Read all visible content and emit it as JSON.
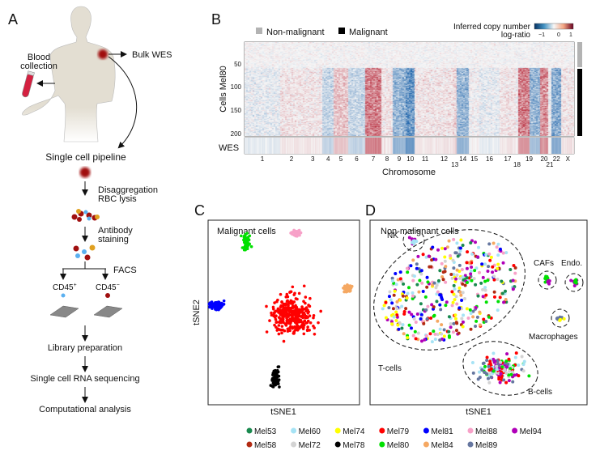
{
  "panel_a": {
    "label": "A",
    "bulk_wes": "Bulk WES",
    "blood_line1": "Blood",
    "blood_line2": "collection",
    "pipeline_title": "Single cell pipeline",
    "step1_line1": "Disaggregation",
    "step1_line2": "RBC lysis",
    "step2_line1": "Antibody",
    "step2_line2": "staining",
    "facs": "FACS",
    "cd45_pos": "CD45",
    "cd45_pos_sup": "+",
    "cd45_neg": "CD45",
    "cd45_neg_sup": "−",
    "step3": "Library preparation",
    "step4": "Single cell RNA sequencing",
    "step5": "Computational analysis"
  },
  "panel_b": {
    "label": "B",
    "legend_nonmalignant": "Non-malignant",
    "legend_malignant": "Malignant",
    "colorbar_title_line1": "Inferred copy number",
    "colorbar_title_line2": "log-ratio",
    "colorbar_ticks": [
      "−1",
      "0",
      "1"
    ],
    "ylabel": "Cells Mel80",
    "yticks": [
      "50",
      "100",
      "150",
      "200"
    ],
    "wes_label": "WES",
    "xlabel": "Chromosome",
    "colors": {
      "gain": "#b2182b",
      "loss": "#2166ac",
      "neutral": "#f7f7f7",
      "nonmalignant": "#b3b3b3",
      "malignant": "#000000"
    },
    "chromosomes": [
      "1",
      "2",
      "3",
      "4",
      "5",
      "6",
      "7",
      "8",
      "9",
      "10",
      "11",
      "12",
      "13",
      "14",
      "15",
      "16",
      "17",
      "18",
      "19",
      "20",
      "21",
      "22",
      "X"
    ],
    "malignant_mean_log_ratio": [
      -0.1,
      0.1,
      0.1,
      -0.3,
      0.3,
      -0.3,
      0.7,
      0.1,
      -0.6,
      -0.9,
      0.1,
      0.1,
      0.2,
      -0.6,
      0.0,
      -0.1,
      0.1,
      0.0,
      0.6,
      0.6,
      0.0,
      -0.7,
      0.1
    ]
  },
  "panel_c": {
    "label": "C",
    "title": "Malignant cells",
    "xlabel": "tSNE1",
    "ylabel": "tSNE2",
    "clusters": [
      "Mel80",
      "Mel88",
      "Mel84",
      "Mel81",
      "Mel79",
      "Mel78"
    ]
  },
  "panel_d": {
    "label": "D",
    "title": "Non-malignant cells",
    "xlabel": "tSNE1",
    "annotations": [
      "NK",
      "CAFs",
      "Endo.",
      "Macrophages",
      "T-cells",
      "B-cells"
    ]
  },
  "legend": [
    {
      "name": "Mel53",
      "color": "#1a8a4f"
    },
    {
      "name": "Mel60",
      "color": "#a6e3f5"
    },
    {
      "name": "Mel74",
      "color": "#ffff00"
    },
    {
      "name": "Mel79",
      "color": "#ff0000"
    },
    {
      "name": "Mel81",
      "color": "#0000ff"
    },
    {
      "name": "Mel88",
      "color": "#f7a1c8"
    },
    {
      "name": "Mel94",
      "color": "#b000b8"
    },
    {
      "name": "Mel58",
      "color": "#b22a12"
    },
    {
      "name": "Mel72",
      "color": "#d3d3d3"
    },
    {
      "name": "Mel78",
      "color": "#000000"
    },
    {
      "name": "Mel80",
      "color": "#00e000"
    },
    {
      "name": "Mel84",
      "color": "#f5a862"
    },
    {
      "name": "Mel89",
      "color": "#6677a0"
    }
  ]
}
